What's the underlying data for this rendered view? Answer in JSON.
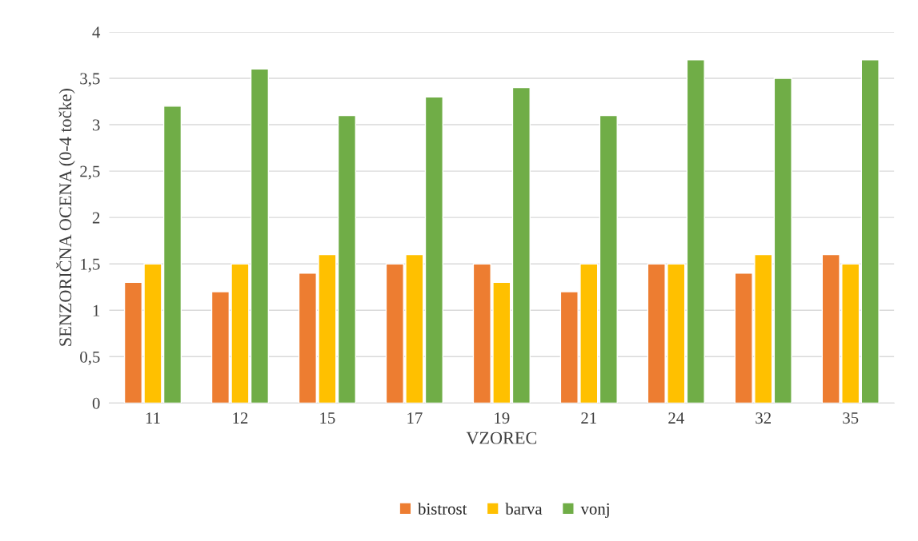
{
  "chart_data": {
    "type": "bar",
    "xlabel": "VZOREC",
    "ylabel": "SENZORIČNA OCENA (0-4 točke)",
    "categories": [
      "11",
      "12",
      "15",
      "17",
      "19",
      "21",
      "24",
      "32",
      "35"
    ],
    "series": [
      {
        "name": "bistrost",
        "color": "#ed7d31",
        "values": [
          1.3,
          1.2,
          1.4,
          1.5,
          1.5,
          1.2,
          1.5,
          1.4,
          1.6
        ]
      },
      {
        "name": "barva",
        "color": "#ffc000",
        "values": [
          1.5,
          1.5,
          1.6,
          1.6,
          1.3,
          1.5,
          1.5,
          1.6,
          1.5
        ]
      },
      {
        "name": "vonj",
        "color": "#70ad47",
        "values": [
          3.2,
          3.6,
          3.1,
          3.3,
          3.4,
          3.1,
          3.7,
          3.5,
          3.7
        ]
      }
    ],
    "ylim": [
      0,
      4
    ],
    "yticks": [
      0,
      {
        "value": 0.5,
        "label": "0,5"
      },
      1,
      {
        "value": 1.5,
        "label": "1,5"
      },
      2,
      {
        "value": 2.5,
        "label": "2,5"
      },
      3,
      {
        "value": 3.5,
        "label": "3,5"
      },
      4
    ],
    "grid": "y",
    "legend": "bottom"
  }
}
